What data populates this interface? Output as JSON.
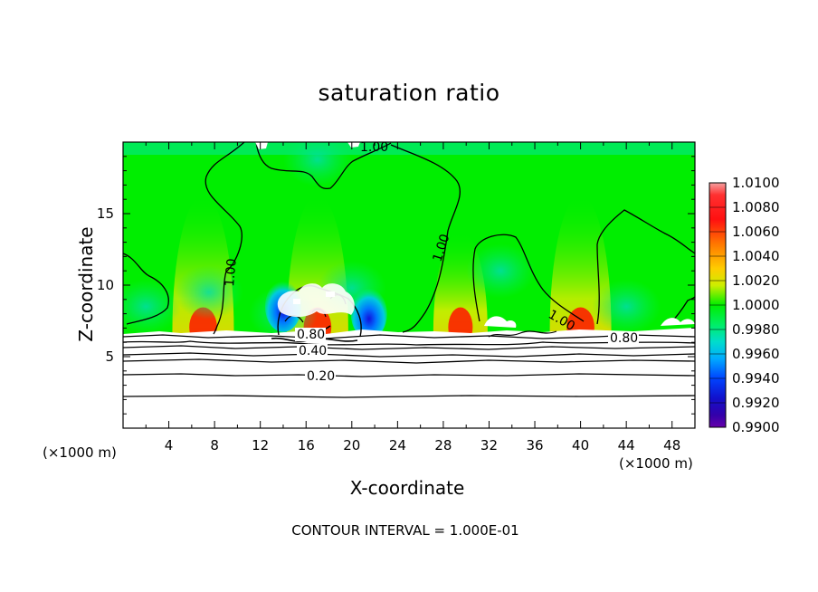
{
  "chart_data": {
    "type": "heatmap",
    "title": "saturation ratio",
    "xlabel": "X-coordinate",
    "ylabel": "Z-coordinate",
    "x_unit_label": "(×1000 m)",
    "xlim": [
      0,
      50
    ],
    "ylim": [
      0,
      20
    ],
    "x_ticks": [
      4,
      8,
      12,
      16,
      20,
      24,
      28,
      32,
      36,
      40,
      44,
      48
    ],
    "y_ticks": [
      5,
      10,
      15
    ],
    "colorbar": {
      "range": [
        0.99,
        1.01
      ],
      "tick_labels": [
        "1.0100",
        "1.0080",
        "1.0060",
        "1.0040",
        "1.0020",
        "1.0000",
        "0.9980",
        "0.9960",
        "0.9940",
        "0.9920",
        "0.9900"
      ],
      "colors": [
        "#f08a8a",
        "#ff1a1a",
        "#ff6600",
        "#ff9900",
        "#ffdd00",
        "#bbee00",
        "#00dd00",
        "#00ee77",
        "#00ddcc",
        "#0099ff",
        "#1111ee",
        "#3300aa",
        "#6600aa"
      ]
    },
    "contour_labels": [
      "1.00",
      "1.00",
      "1.00",
      "1.00",
      "0.80",
      "0.80",
      "0.40",
      "0.20"
    ],
    "contour_levels_below_cloud": [
      0.2,
      0.4,
      0.6,
      0.8,
      1.0
    ],
    "maxima_near_cloud_base": [
      {
        "x": 7.0,
        "z": 7.0,
        "level": "high"
      },
      {
        "x": 17.0,
        "z": 7.5,
        "level": "high"
      },
      {
        "x": 29.5,
        "z": 7.0,
        "level": "medium"
      },
      {
        "x": 40.0,
        "z": 7.5,
        "level": "high"
      }
    ],
    "minima": [
      {
        "x": 14.0,
        "z": 8.5
      },
      {
        "x": 21.5,
        "z": 8.0
      }
    ],
    "note": "CONTOUR INTERVAL = 1.000E-01"
  }
}
